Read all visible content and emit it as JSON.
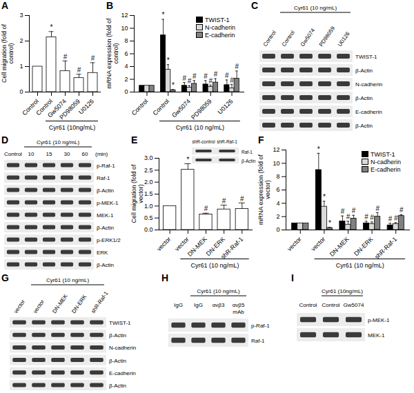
{
  "chart_data": [
    {
      "title": "A",
      "type": "bar",
      "categories": [
        "Control",
        "Control",
        "Gw5074",
        "PD98059",
        "U0126"
      ],
      "values": [
        1,
        2.15,
        0.82,
        0.55,
        0.75
      ],
      "errors": [
        0,
        0.22,
        0.4,
        0.15,
        0.4
      ],
      "annotations": [
        null,
        "*",
        "#",
        "#",
        "#"
      ],
      "color": "#ffffff",
      "group_label": "Cyr61 (10ng/mL)",
      "y_label": "Cell migration (fold of control)",
      "ylim": [
        0,
        3
      ],
      "yticks": [
        0,
        1,
        2,
        3
      ]
    },
    {
      "title": "B",
      "type": "bar",
      "categories": [
        "Control",
        "Control",
        "Gw5074",
        "PD98059",
        "U0126"
      ],
      "series": [
        {
          "name": "TWIST-1",
          "color": "#000000",
          "values": [
            1,
            8.9,
            1.0,
            1.2,
            1.1
          ],
          "errors": [
            0,
            2.5,
            0.5,
            0.6,
            0.8
          ],
          "annotations": [
            null,
            "*",
            "#",
            "#",
            "#"
          ]
        },
        {
          "name": "N-cadherin",
          "color": "#d9d9d9",
          "values": [
            1,
            3.5,
            0.7,
            0.8,
            0.6
          ],
          "errors": [
            0,
            0.8,
            0.3,
            0.3,
            0.6
          ],
          "annotations": [
            null,
            "*",
            "#",
            "#",
            "#"
          ]
        },
        {
          "name": "E-cadherin",
          "color": "#808080",
          "values": [
            1,
            0.3,
            1.3,
            1.5,
            2.1
          ],
          "errors": [
            0,
            0.1,
            0.5,
            0.6,
            1.2
          ],
          "annotations": [
            null,
            "*",
            "#",
            "#",
            "#"
          ]
        }
      ],
      "group_label": "Cyr61 (10 ng/mL)",
      "y_label": "mRNA expression (fold of control)",
      "legend": "top-right",
      "ylim": [
        0,
        12
      ],
      "yticks": [
        0,
        2,
        4,
        6,
        8,
        10,
        12
      ]
    },
    {
      "title": "E",
      "type": "bar",
      "categories": [
        "vector",
        "vector",
        "DN-MEK",
        "DN-ERK",
        "shR-Raf-1"
      ],
      "values": [
        1,
        2.52,
        0.65,
        0.86,
        0.88
      ],
      "errors": [
        0,
        0.25,
        0.05,
        0.18,
        0.25
      ],
      "annotations": [
        null,
        "*",
        "#",
        "#",
        "#"
      ],
      "color": "#ffffff",
      "group_label": "Cyr61 (10 ng/mL)",
      "y_label": "Cell migration (fold of vector)",
      "inset": {
        "groups": [
          {
            "lanes": [
              "shR-control",
              "shR-Raf-1"
            ]
          }
        ],
        "rows": [
          "Raf-1",
          "β-Actin"
        ]
      },
      "ylim": [
        0,
        3
      ],
      "yticks": [
        {
          "value": 0,
          "label": "0.0"
        },
        {
          "value": 0.5,
          "label": "0.5"
        },
        {
          "value": 1,
          "label": "1.0"
        },
        {
          "value": 1.5,
          "label": "1.5"
        },
        {
          "value": 2,
          "label": "2.0"
        },
        {
          "value": 2.5,
          "label": "2.5"
        },
        {
          "value": 3,
          "label": "3.0"
        }
      ]
    },
    {
      "title": "F",
      "type": "bar",
      "categories": [
        "vector",
        "vector",
        "DN-MEK",
        "DN-ERK",
        "shR-Raf-1"
      ],
      "series": [
        {
          "name": "TWIST-1",
          "color": "#000000",
          "values": [
            1,
            9.0,
            1.3,
            1.0,
            0.7
          ],
          "errors": [
            0,
            2.5,
            0.8,
            0.3,
            0.3
          ],
          "annotations": [
            null,
            "*",
            "#",
            "#",
            "#"
          ]
        },
        {
          "name": "N-cadherin",
          "color": "#d9d9d9",
          "values": [
            1,
            3.5,
            0.8,
            0.9,
            0.9
          ],
          "errors": [
            0,
            0.8,
            0.5,
            0.3,
            0.2
          ],
          "annotations": [
            null,
            "*",
            "#",
            "#",
            "#"
          ]
        },
        {
          "name": "E-cadherin",
          "color": "#808080",
          "values": [
            1,
            0.3,
            1.7,
            2.0,
            2.1
          ],
          "errors": [
            0,
            0.1,
            0.5,
            0.6,
            0.2
          ],
          "annotations": [
            null,
            "*",
            "#",
            "#",
            "#"
          ]
        }
      ],
      "group_label": "Cyr61 (10 ng/mL)",
      "y_label": "mRNA expression (fold of vector)",
      "legend": "top-right",
      "ylim": [
        0,
        12
      ],
      "yticks": [
        0,
        2,
        4,
        6,
        8,
        10,
        12
      ]
    }
  ],
  "blots": [
    {
      "title": "C",
      "groups": [
        {
          "lanes": [
            "Control"
          ]
        },
        {
          "label": "Cyr61 (10 ng/mL)",
          "lanes": [
            "Control",
            "Gw5074",
            "PD98059",
            "U0126"
          ]
        }
      ],
      "rows": [
        "TWIST-1",
        "β-Actin",
        "N-cadherin",
        "β-Actin",
        "E-cadherin",
        "β-Actin"
      ]
    },
    {
      "title": "D",
      "groups": [
        {
          "lanes": [
            "Control"
          ]
        },
        {
          "label": "Cyr61 (10 ng/mL)",
          "lanes": [
            "10",
            "15",
            "30",
            "60"
          ]
        }
      ],
      "unit": "(min)",
      "rows": [
        "p-Raf-1",
        "Raf-1",
        "β-Actin",
        "p-MEK-1",
        "MEK-1",
        "β-Actin",
        "p-ERK1/2",
        "ERK",
        "β-Actin"
      ]
    },
    {
      "title": "G",
      "groups": [
        {
          "lanes": [
            "vector"
          ]
        },
        {
          "label": "Cyr61 (10 ng/mL)",
          "lanes": [
            "vector",
            "DN-MEK",
            "DN-ERK",
            "shR-Raf-1"
          ]
        }
      ],
      "rows": [
        "TWIST-1",
        "β-Actin",
        "N-cadherin",
        "β-Actin",
        "E-cadherin",
        "β-Actin"
      ]
    },
    {
      "title": "H",
      "groups": [
        {
          "lanes": [
            "IgG"
          ]
        },
        {
          "label": "Cyr61 (10 ng/mL)",
          "lanes": [
            "IgG",
            "αvβ3",
            "αvβ5"
          ]
        }
      ],
      "note": "mAb",
      "rows": [
        "p-Raf-1",
        "Raf-1"
      ]
    },
    {
      "title": "I",
      "groups": [
        {
          "lanes": [
            "Control"
          ]
        },
        {
          "label": "Cyr61 (10ng/mL)",
          "lanes": [
            "Control",
            "Gw5074"
          ]
        }
      ],
      "rows": [
        "p-MEK-1",
        "MEK-1"
      ]
    }
  ]
}
